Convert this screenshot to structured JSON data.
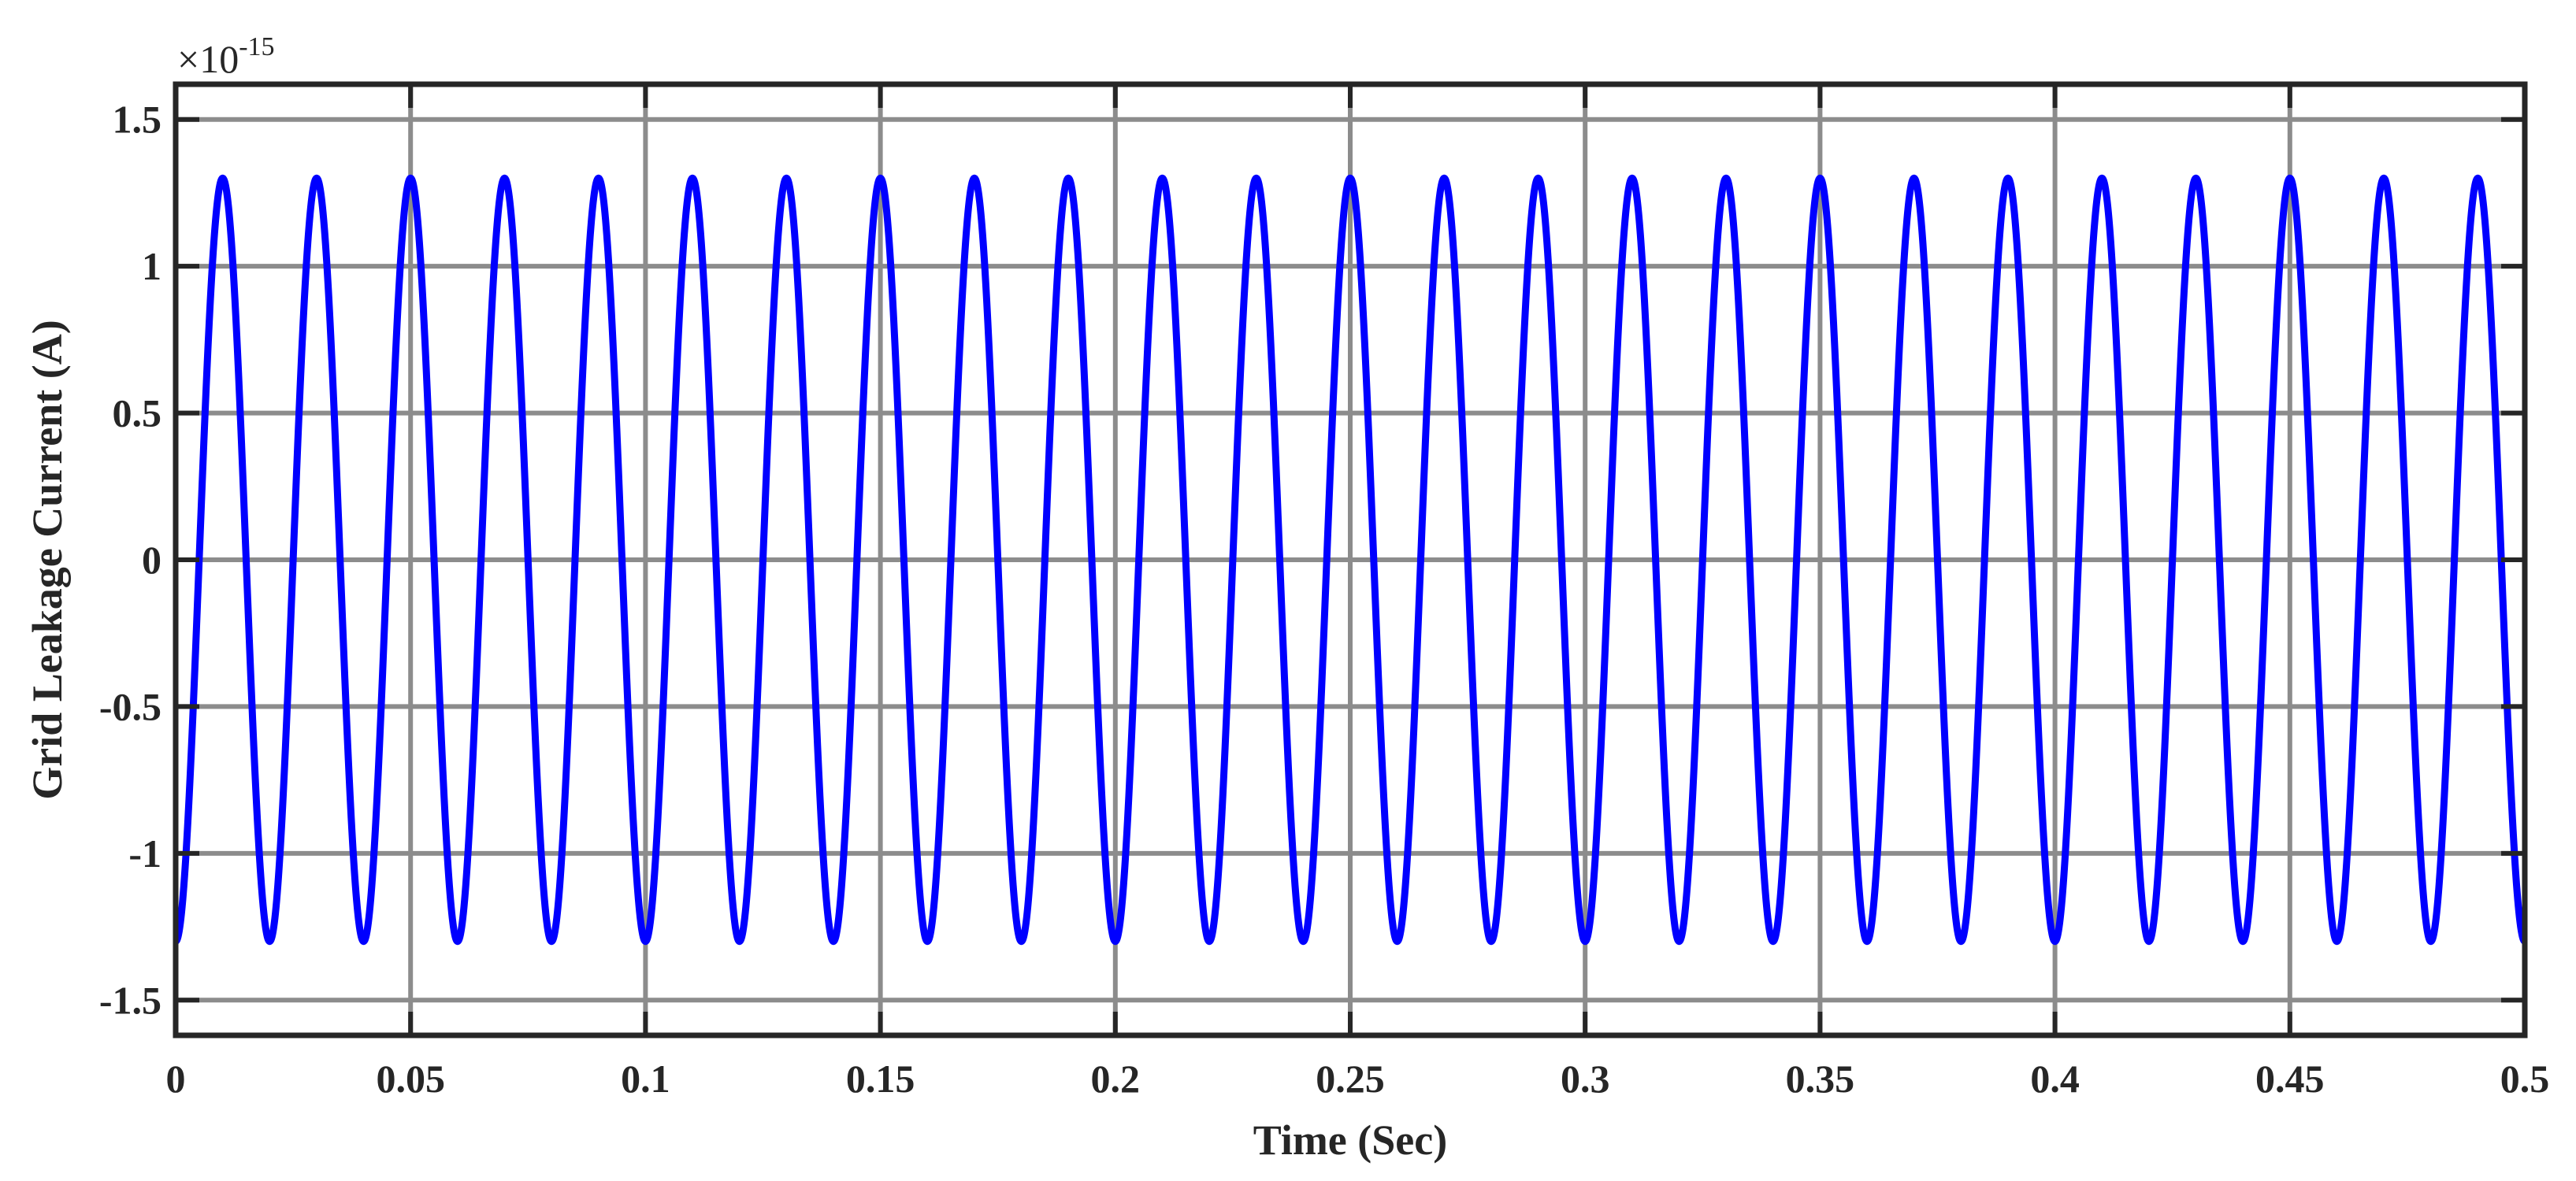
{
  "chart_data": {
    "type": "line",
    "title": "",
    "xlabel": "Time (Sec)",
    "ylabel": "Grid Leakage Current (A)",
    "y_multiplier": {
      "base": "×10",
      "exponent": "-15"
    },
    "xlim": [
      0,
      0.5
    ],
    "ylim": [
      -1.62,
      1.62
    ],
    "grid": true,
    "x_ticks": [
      0,
      0.05,
      0.1,
      0.15,
      0.2,
      0.25,
      0.3,
      0.35,
      0.4,
      0.45,
      0.5
    ],
    "x_tick_labels": [
      "0",
      "0.05",
      "0.1",
      "0.15",
      "0.2",
      "0.25",
      "0.3",
      "0.35",
      "0.4",
      "0.45",
      "0.5"
    ],
    "y_ticks": [
      -1.5,
      -1,
      -0.5,
      0,
      0.5,
      1,
      1.5
    ],
    "y_tick_labels": [
      "-1.5",
      "-1",
      "-0.5",
      "0",
      "0.5",
      "1",
      "1.5"
    ],
    "series": [
      {
        "name": "Grid Leakage Current",
        "color": "#0000ff",
        "function": "negative cosine",
        "amplitude": 1.3,
        "frequency_hz": 50,
        "phase_start": "-amplitude at t=0",
        "x_start": 0,
        "x_end": 0.5
      }
    ],
    "colors": {
      "line": "#0000ff",
      "grid": "#8c8c8c",
      "axes": "#262626",
      "background": "#ffffff"
    }
  }
}
